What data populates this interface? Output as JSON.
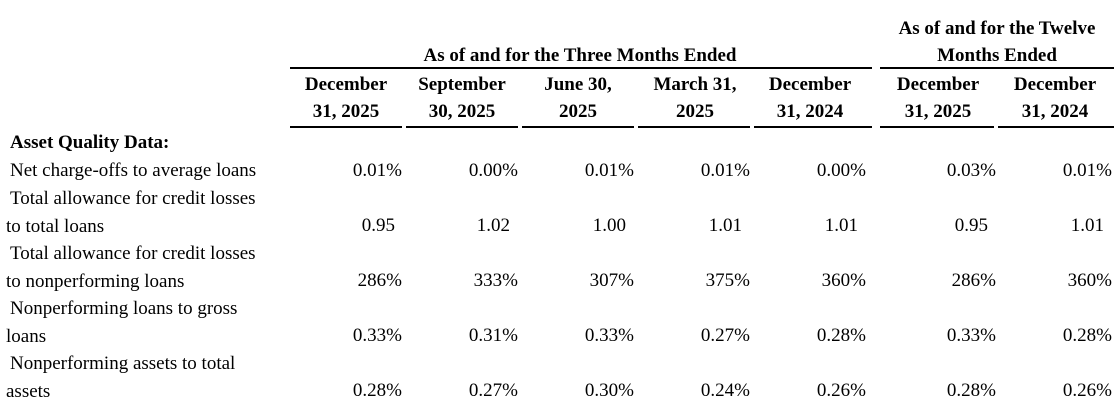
{
  "header": {
    "three_months_group": "As of and for the Three Months Ended",
    "twelve_months_group_line1": "As of and for the Twelve",
    "twelve_months_group_line2": "Months Ended",
    "columns": [
      {
        "line1": "December",
        "line2": "31, 2025"
      },
      {
        "line1": "September",
        "line2": "30, 2025"
      },
      {
        "line1": "June 30,",
        "line2": "2025"
      },
      {
        "line1": "March 31,",
        "line2": "2025"
      },
      {
        "line1": "December",
        "line2": "31, 2024"
      },
      {
        "line1": "December",
        "line2": "31, 2025"
      },
      {
        "line1": "December",
        "line2": "31, 2024"
      }
    ]
  },
  "section_title": "Asset Quality Data:",
  "rows": [
    {
      "label_line1": "",
      "label_line2": "Net charge-offs to average loans",
      "values": [
        "0.01%",
        "0.00%",
        "0.01%",
        "0.01%",
        "0.00%",
        "0.03%",
        "0.01%"
      ]
    },
    {
      "label_line1": "Total allowance for credit losses",
      "label_line2": "to total loans",
      "values": [
        "0.95",
        "1.02",
        "1.00",
        "1.01",
        "1.01",
        "0.95",
        "1.01"
      ]
    },
    {
      "label_line1": "Total allowance for credit losses",
      "label_line2": "to nonperforming loans",
      "values": [
        "286%",
        "333%",
        "307%",
        "375%",
        "360%",
        "286%",
        "360%"
      ]
    },
    {
      "label_line1": "Nonperforming loans to gross",
      "label_line2": "loans",
      "values": [
        "0.33%",
        "0.31%",
        "0.33%",
        "0.27%",
        "0.28%",
        "0.33%",
        "0.28%"
      ]
    },
    {
      "label_line1": "Nonperforming assets to total",
      "label_line2": "assets",
      "values": [
        "0.28%",
        "0.27%",
        "0.30%",
        "0.24%",
        "0.26%",
        "0.28%",
        "0.26%"
      ]
    }
  ]
}
